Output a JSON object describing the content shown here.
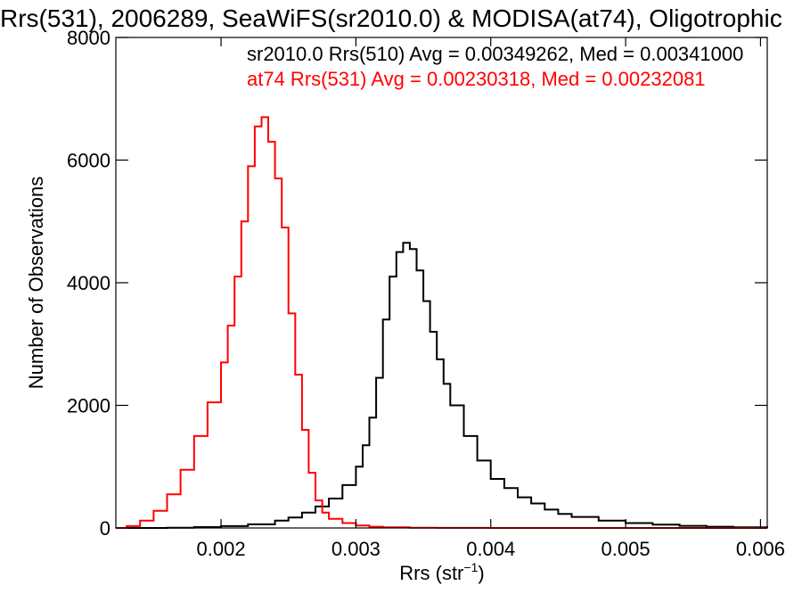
{
  "chart_data": {
    "type": "line",
    "title": "Rrs(531), 2006289, SeaWiFS(sr2010.0) & MODISA(at74), Oligotrophic",
    "xlabel": "Rrs (str",
    "xlabel_sup": "−1",
    "xlabel_close": ")",
    "ylabel": "Number of Observations",
    "xlim": [
      0.00122,
      0.00605
    ],
    "ylim": [
      0,
      8000
    ],
    "xticks": [
      0.002,
      0.003,
      0.004,
      0.005,
      0.006
    ],
    "xtick_labels": [
      "0.002",
      "0.003",
      "0.004",
      "0.005",
      "0.006"
    ],
    "yticks": [
      0,
      2000,
      4000,
      6000,
      8000
    ],
    "ytick_labels": [
      "0",
      "2000",
      "4000",
      "6000",
      "8000"
    ],
    "grid": false,
    "legend_position": "top-right",
    "series": [
      {
        "name": "sr2010.0 Rrs(510) Avg = 0.00349262, Med = 0.00341000",
        "color": "#000000",
        "x": [
          0.00122,
          0.0014,
          0.0016,
          0.0018,
          0.002,
          0.0022,
          0.0024,
          0.0025,
          0.0026,
          0.0027,
          0.0028,
          0.0029,
          0.003,
          0.00305,
          0.0031,
          0.00315,
          0.0032,
          0.00325,
          0.0033,
          0.00335,
          0.0034,
          0.00345,
          0.0035,
          0.00355,
          0.0036,
          0.00365,
          0.0037,
          0.0038,
          0.0039,
          0.004,
          0.0041,
          0.0042,
          0.0043,
          0.0044,
          0.0045,
          0.0046,
          0.0048,
          0.005,
          0.0052,
          0.0054,
          0.0056,
          0.0058,
          0.00605
        ],
        "y": [
          0,
          0,
          5,
          15,
          30,
          60,
          120,
          170,
          250,
          350,
          480,
          700,
          1000,
          1350,
          1800,
          2450,
          3400,
          4100,
          4500,
          4650,
          4550,
          4200,
          3700,
          3200,
          2750,
          2350,
          2000,
          1500,
          1100,
          800,
          650,
          500,
          400,
          300,
          230,
          180,
          120,
          80,
          55,
          35,
          20,
          10,
          5
        ]
      },
      {
        "name": "at74 Rrs(531) Avg = 0.00230318, Med = 0.00232081",
        "color": "#ff0000",
        "x": [
          0.00122,
          0.0013,
          0.0014,
          0.0015,
          0.0016,
          0.0017,
          0.0018,
          0.0019,
          0.002,
          0.00205,
          0.0021,
          0.00215,
          0.0022,
          0.00225,
          0.0023,
          0.00235,
          0.0024,
          0.00245,
          0.0025,
          0.00255,
          0.0026,
          0.00265,
          0.0027,
          0.00275,
          0.0028,
          0.0029,
          0.003,
          0.0031,
          0.0032,
          0.0034,
          0.0036,
          0.004,
          0.005,
          0.00605
        ],
        "y": [
          0,
          30,
          120,
          280,
          550,
          950,
          1500,
          2050,
          2700,
          3300,
          4100,
          5000,
          5900,
          6550,
          6700,
          6300,
          5700,
          4900,
          3500,
          2500,
          1600,
          900,
          450,
          250,
          150,
          80,
          40,
          20,
          12,
          5,
          2,
          0,
          0,
          0
        ]
      }
    ]
  }
}
